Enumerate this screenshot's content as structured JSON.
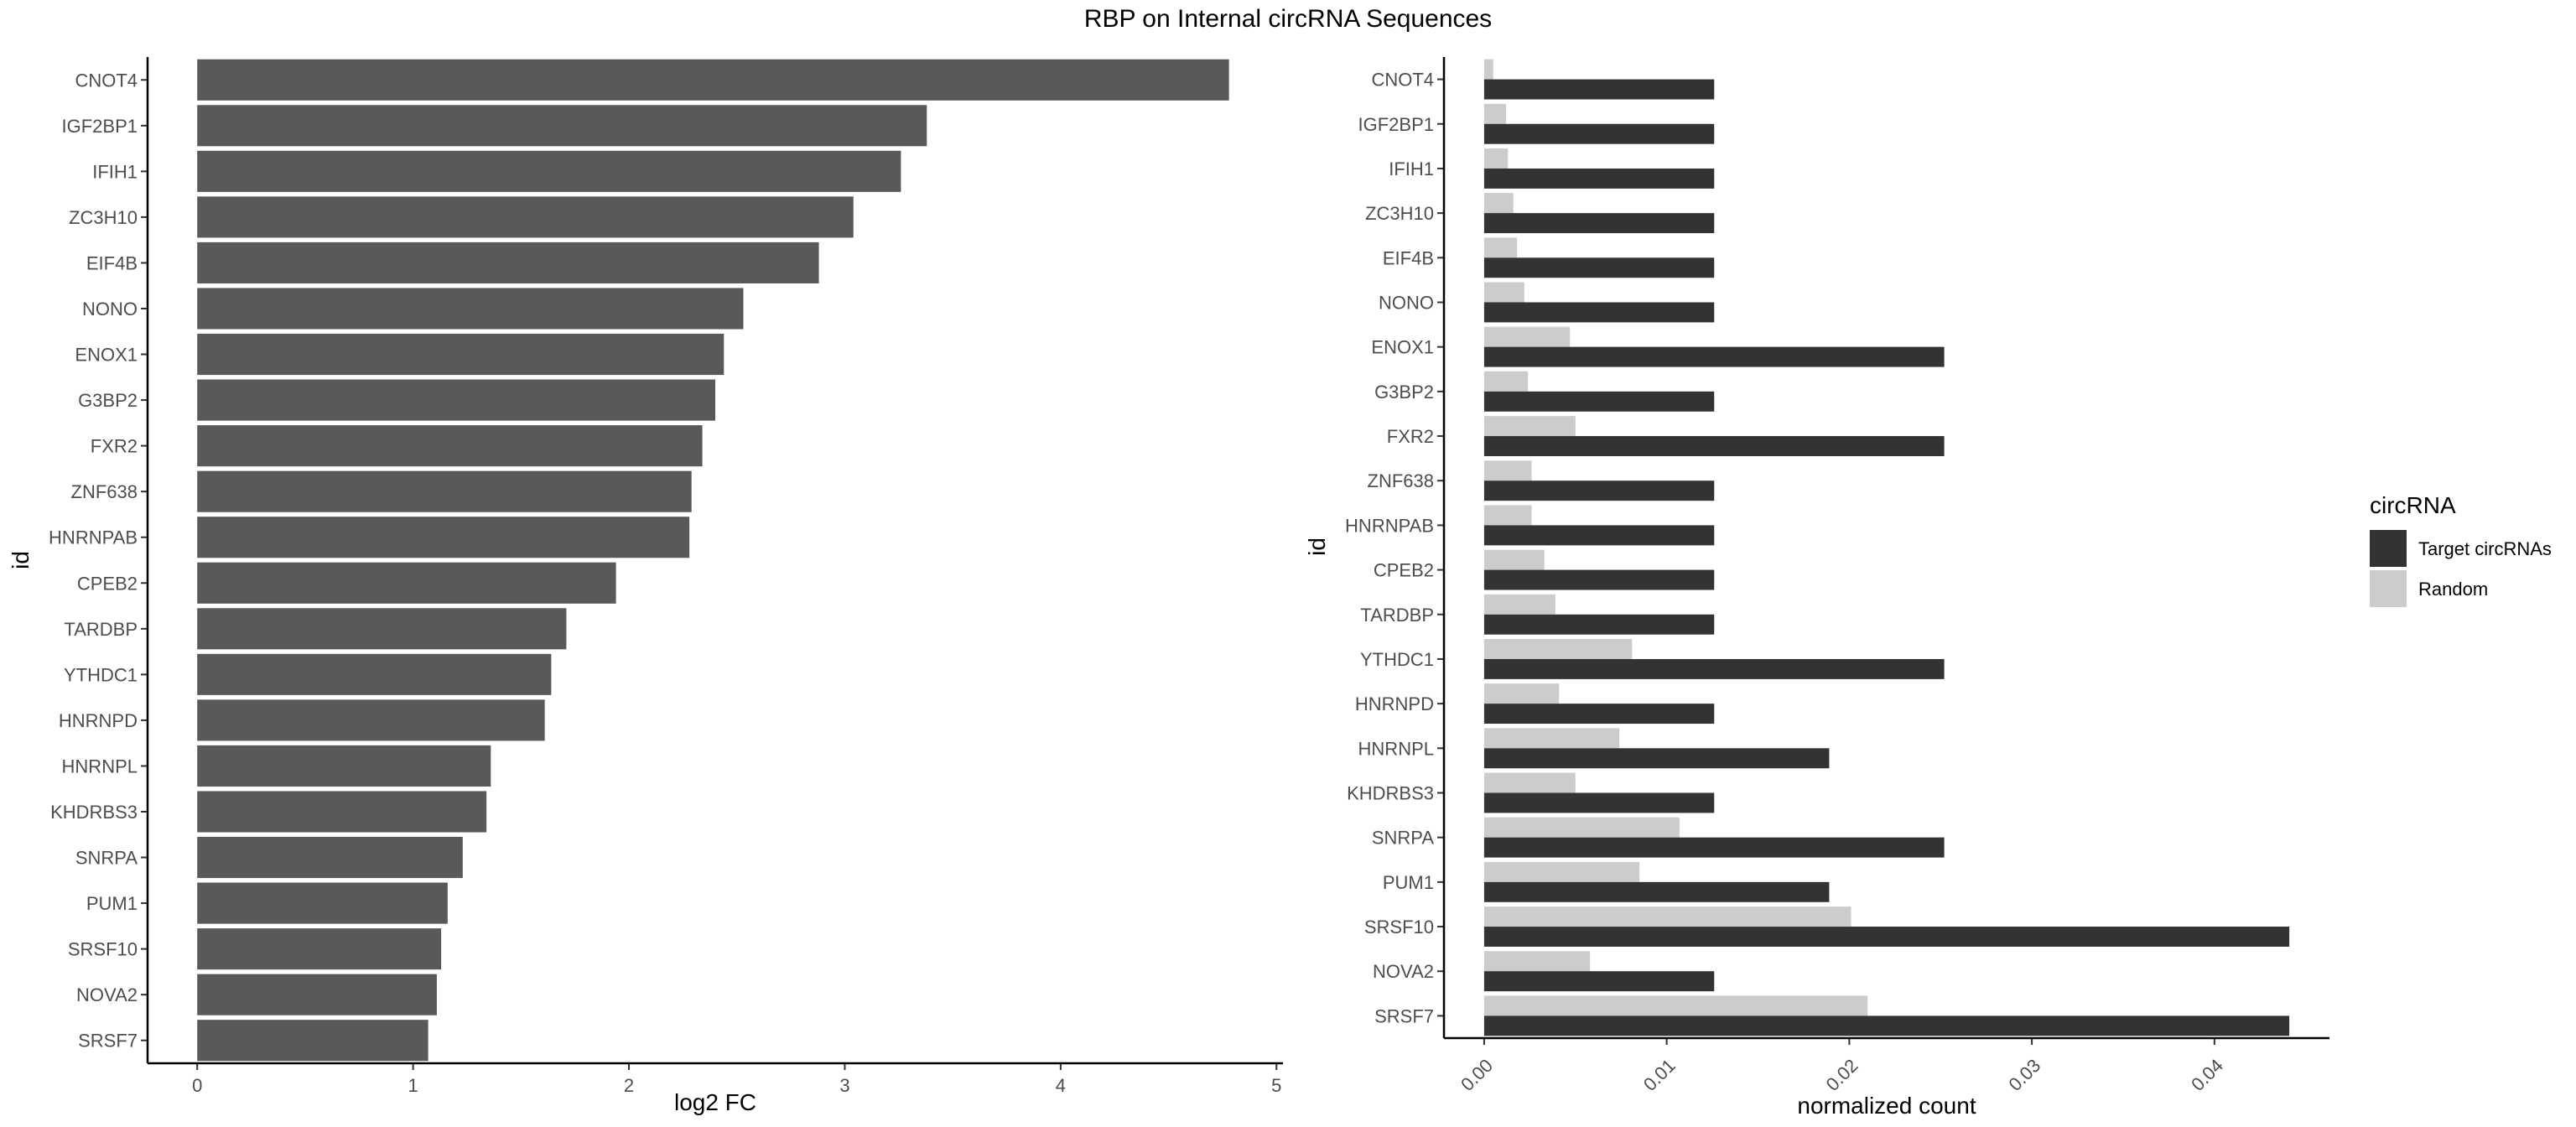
{
  "title": "RBP on Internal circRNA Sequences",
  "chart_data": [
    {
      "type": "bar",
      "orientation": "horizontal",
      "categories": [
        "CNOT4",
        "IGF2BP1",
        "IFIH1",
        "ZC3H10",
        "EIF4B",
        "NONO",
        "ENOX1",
        "G3BP2",
        "FXR2",
        "ZNF638",
        "HNRNPAB",
        "CPEB2",
        "TARDBP",
        "YTHDC1",
        "HNRNPD",
        "HNRNPL",
        "KHDRBS3",
        "SNRPA",
        "PUM1",
        "SRSF10",
        "NOVA2",
        "SRSF7"
      ],
      "values": [
        4.78,
        3.38,
        3.26,
        3.04,
        2.88,
        2.53,
        2.44,
        2.4,
        2.34,
        2.29,
        2.28,
        1.94,
        1.71,
        1.64,
        1.61,
        1.36,
        1.34,
        1.23,
        1.16,
        1.13,
        1.11,
        1.07
      ],
      "xlabel": "log2 FC",
      "ylabel": "id",
      "xlim": [
        -0.23,
        5.03
      ],
      "xticks": [
        "0",
        "1",
        "2",
        "3",
        "4",
        "5"
      ],
      "bar_color": "#595959",
      "grid": false
    },
    {
      "type": "bar",
      "orientation": "horizontal",
      "grouped": true,
      "categories": [
        "CNOT4",
        "IGF2BP1",
        "IFIH1",
        "ZC3H10",
        "EIF4B",
        "NONO",
        "ENOX1",
        "G3BP2",
        "FXR2",
        "ZNF638",
        "HNRNPAB",
        "CPEB2",
        "TARDBP",
        "YTHDC1",
        "HNRNPD",
        "HNRNPL",
        "KHDRBS3",
        "SNRPA",
        "PUM1",
        "SRSF10",
        "NOVA2",
        "SRSF7"
      ],
      "series": [
        {
          "name": "Target circRNAs",
          "color": "#333333",
          "values": [
            0.0126,
            0.0126,
            0.0126,
            0.0126,
            0.0126,
            0.0126,
            0.0252,
            0.0126,
            0.0252,
            0.0126,
            0.0126,
            0.0126,
            0.0126,
            0.0252,
            0.0126,
            0.0189,
            0.0126,
            0.0252,
            0.0189,
            0.0441,
            0.0126,
            0.0441
          ]
        },
        {
          "name": "Random",
          "color": "#cccccc",
          "values": [
            0.0005,
            0.0012,
            0.0013,
            0.0016,
            0.0018,
            0.0022,
            0.0047,
            0.0024,
            0.005,
            0.0026,
            0.0026,
            0.0033,
            0.0039,
            0.0081,
            0.0041,
            0.0074,
            0.005,
            0.0107,
            0.0085,
            0.0201,
            0.0058,
            0.021
          ]
        }
      ],
      "xlabel": "normalized count",
      "ylabel": "id",
      "xlim": [
        -0.0022,
        0.0463
      ],
      "xticks": [
        "0.00",
        "0.01",
        "0.02",
        "0.03",
        "0.04"
      ],
      "legend": {
        "title": "circRNA",
        "position": "right"
      },
      "grid": false
    }
  ]
}
